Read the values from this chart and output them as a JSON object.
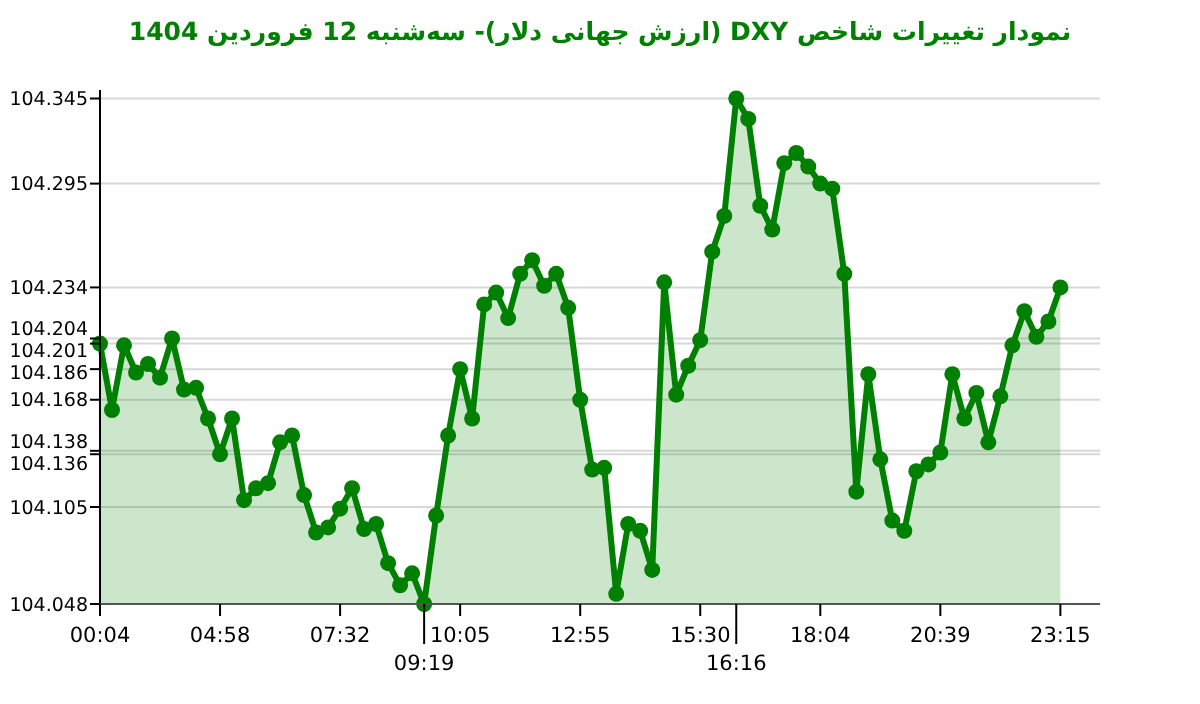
{
  "chart_data": {
    "type": "area",
    "title": "نمودار تغییرات شاخص DXY (ارزش جهانی دلار)- سه‌شنبه  12 فروردین 1404",
    "categories": [
      "00:04",
      null,
      null,
      null,
      null,
      null,
      null,
      null,
      null,
      null,
      "04:58",
      null,
      null,
      null,
      null,
      null,
      null,
      null,
      null,
      null,
      "07:32",
      null,
      null,
      null,
      null,
      null,
      null,
      "09:19",
      null,
      null,
      "10:05",
      null,
      null,
      null,
      null,
      null,
      null,
      null,
      null,
      null,
      "12:55",
      null,
      null,
      null,
      null,
      null,
      null,
      null,
      null,
      null,
      "15:30",
      null,
      null,
      "16:16",
      null,
      null,
      null,
      null,
      null,
      null,
      "18:04",
      null,
      null,
      null,
      null,
      null,
      null,
      null,
      null,
      null,
      "20:39",
      null,
      null,
      null,
      null,
      null,
      null,
      null,
      null,
      null,
      "23:15"
    ],
    "series": [
      {
        "color": "#008000",
        "values": [
          104.201,
          104.162,
          104.2,
          104.184,
          104.189,
          104.181,
          104.204,
          104.174,
          104.175,
          104.157,
          104.136,
          104.157,
          104.109,
          104.116,
          104.119,
          104.143,
          104.147,
          104.112,
          104.09,
          104.093,
          104.104,
          104.116,
          104.092,
          104.095,
          104.072,
          104.059,
          104.066,
          104.048,
          104.1,
          104.147,
          104.186,
          104.157,
          104.224,
          104.231,
          104.216,
          104.242,
          104.25,
          104.235,
          104.242,
          104.222,
          104.168,
          104.127,
          104.128,
          104.054,
          104.095,
          104.091,
          104.068,
          104.237,
          104.171,
          104.188,
          104.203,
          104.255,
          104.276,
          104.345,
          104.333,
          104.282,
          104.268,
          104.307,
          104.313,
          104.305,
          104.295,
          104.292,
          104.242,
          104.114,
          104.183,
          104.133,
          104.097,
          104.091,
          104.126,
          104.13,
          104.137,
          104.183,
          104.157,
          104.172,
          104.143,
          104.17,
          104.2,
          104.22,
          104.205,
          104.214,
          104.234
        ]
      }
    ],
    "ylim": [
      104.048,
      104.35
    ],
    "yticks": [
      104.048,
      104.105,
      104.136,
      104.138,
      104.168,
      104.186,
      104.201,
      104.204,
      104.234,
      104.295,
      104.345
    ],
    "grid": "y",
    "marker": "circle",
    "line_style": "solid"
  }
}
